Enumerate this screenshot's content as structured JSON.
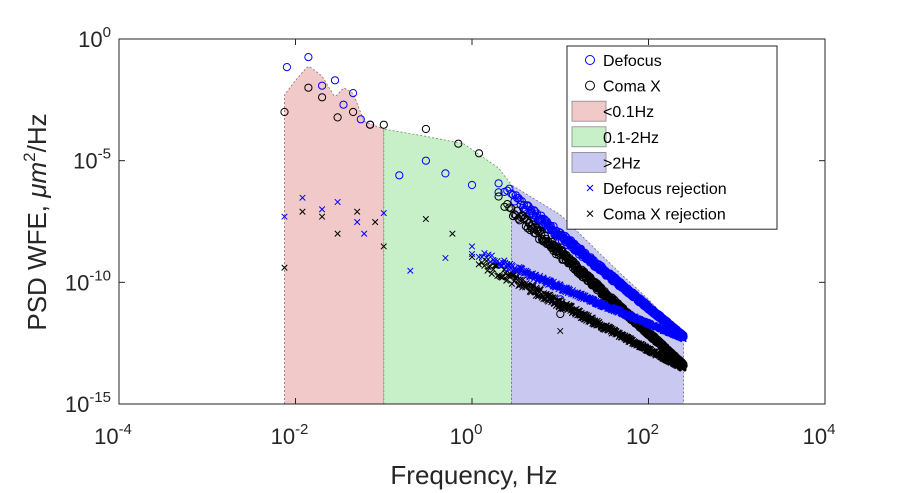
{
  "chart_data": {
    "type": "scatter",
    "xscale": "log",
    "yscale": "log",
    "xlabel": "Frequency, Hz",
    "ylabel_prefix": "PSD WFE,  ",
    "ylabel_unit": "μm",
    "ylabel_exp": "2",
    "ylabel_suffix": "/Hz",
    "xlim": [
      0.0001,
      10000
    ],
    "ylim": [
      1e-15,
      1
    ],
    "x_ticks": [
      {
        "base": "10",
        "exp": "-4",
        "value": -4
      },
      {
        "base": "10",
        "exp": "-2",
        "value": -2
      },
      {
        "base": "10",
        "exp": "0",
        "value": 0
      },
      {
        "base": "10",
        "exp": "2",
        "value": 2
      },
      {
        "base": "10",
        "exp": "4",
        "value": 4
      }
    ],
    "y_ticks": [
      {
        "base": "10",
        "exp": "0",
        "value": 0
      },
      {
        "base": "10",
        "exp": "-5",
        "value": -5
      },
      {
        "base": "10",
        "exp": "-10",
        "value": -10
      },
      {
        "base": "10",
        "exp": "-15",
        "value": -15
      }
    ],
    "bands": [
      {
        "name": "<0.1Hz",
        "x_from": 0.0075,
        "x_to": 0.1,
        "color": "#f2c9c9",
        "edge": "#8a7070"
      },
      {
        "name": "0.1-2Hz",
        "x_from": 0.1,
        "x_to": 2.8,
        "color": "#c8f0c8",
        "edge": "#708a70"
      },
      {
        "name": ">2Hz",
        "x_from": 2.8,
        "x_to": 250,
        "color": "#c8c8f0",
        "edge": "#70708a"
      }
    ],
    "envelope": [
      {
        "x": 0.0075,
        "y": 0.005
      },
      {
        "x": 0.01,
        "y": 0.02
      },
      {
        "x": 0.014,
        "y": 0.08
      },
      {
        "x": 0.02,
        "y": 0.03
      },
      {
        "x": 0.028,
        "y": 0.004
      },
      {
        "x": 0.035,
        "y": 0.01
      },
      {
        "x": 0.045,
        "y": 0.006
      },
      {
        "x": 0.06,
        "y": 0.0004
      },
      {
        "x": 0.1,
        "y": 0.0002
      },
      {
        "x": 0.3,
        "y": 0.0001
      },
      {
        "x": 0.8,
        "y": 5e-05
      },
      {
        "x": 2,
        "y": 5e-06
      },
      {
        "x": 2.8,
        "y": 1e-06
      },
      {
        "x": 10,
        "y": 6e-08
      },
      {
        "x": 50,
        "y": 2e-10
      },
      {
        "x": 100,
        "y": 2e-11
      },
      {
        "x": 250,
        "y": 5e-13
      }
    ],
    "series": [
      {
        "name": "Defocus",
        "marker": "circle",
        "color": "#0000ff",
        "points": [
          [
            0.008,
            0.07
          ],
          [
            0.014,
            0.18
          ],
          [
            0.02,
            0.012
          ],
          [
            0.028,
            0.02
          ],
          [
            0.035,
            0.002
          ],
          [
            0.045,
            0.006
          ],
          [
            0.055,
            0.0005
          ],
          [
            0.07,
            0.0003
          ],
          [
            0.15,
            2.5e-06
          ],
          [
            0.3,
            1e-05
          ],
          [
            0.5,
            3e-06
          ],
          [
            1.0,
            1e-06
          ],
          [
            2.0,
            5e-07
          ],
          [
            10,
            2e-11
          ]
        ],
        "trend": {
          "x_from": 2,
          "x_to": 250,
          "y_from": 1e-06,
          "y_to": 6e-13,
          "spread_dec": 0.45
        }
      },
      {
        "name": "Coma X",
        "marker": "circle",
        "color": "#000000",
        "points": [
          [
            0.0075,
            0.001
          ],
          [
            0.014,
            0.01
          ],
          [
            0.02,
            0.004
          ],
          [
            0.03,
            0.0006
          ],
          [
            0.045,
            0.001
          ],
          [
            0.07,
            0.0003
          ],
          [
            0.1,
            0.0003
          ],
          [
            0.3,
            0.0002
          ],
          [
            0.7,
            5e-05
          ],
          [
            1.2,
            2e-05
          ],
          [
            10,
            5e-12
          ]
        ],
        "trend": {
          "x_from": 2,
          "x_to": 250,
          "y_from": 3e-07,
          "y_to": 4e-14,
          "spread_dec": 0.5
        }
      },
      {
        "name": "Defocus rejection",
        "marker": "x",
        "color": "#0000ff",
        "points": [
          [
            0.0075,
            5e-08
          ],
          [
            0.012,
            3e-07
          ],
          [
            0.02,
            1e-07
          ],
          [
            0.03,
            2e-07
          ],
          [
            0.05,
            3e-08
          ],
          [
            0.06,
            1e-08
          ],
          [
            0.1,
            7e-08
          ],
          [
            0.2,
            3e-10
          ],
          [
            0.5,
            1e-09
          ],
          [
            1.0,
            3e-09
          ]
        ],
        "trend": {
          "x_from": 1,
          "x_to": 250,
          "y_from": 2e-09,
          "y_to": 5e-13,
          "spread_dec": 0.35
        }
      },
      {
        "name": "Coma X rejection",
        "marker": "x",
        "color": "#000000",
        "points": [
          [
            0.0075,
            4e-10
          ],
          [
            0.012,
            8e-08
          ],
          [
            0.02,
            5e-08
          ],
          [
            0.03,
            1e-08
          ],
          [
            0.05,
            8e-08
          ],
          [
            0.08,
            3e-08
          ],
          [
            0.1,
            3e-09
          ],
          [
            0.3,
            4e-08
          ],
          [
            0.6,
            1e-08
          ],
          [
            1.5,
            3e-10
          ],
          [
            10,
            1e-12
          ]
        ],
        "trend": {
          "x_from": 1,
          "x_to": 250,
          "y_from": 1e-09,
          "y_to": 3e-14,
          "spread_dec": 0.5
        }
      }
    ],
    "legend": {
      "placement": "top-right",
      "entries": [
        {
          "label": "Defocus",
          "kind": "circle",
          "color": "#0000ff"
        },
        {
          "label": "Coma X",
          "kind": "circle",
          "color": "#000000"
        },
        {
          "label": "<0.1Hz",
          "kind": "patch",
          "color": "#f2c9c9"
        },
        {
          "label": "0.1-2Hz",
          "kind": "patch",
          "color": "#c8f0c8"
        },
        {
          "label": ">2Hz",
          "kind": "patch",
          "color": "#c8c8f0"
        },
        {
          "label": "Defocus rejection",
          "kind": "x",
          "color": "#0000ff"
        },
        {
          "label": "Coma X rejection",
          "kind": "x",
          "color": "#000000"
        }
      ]
    }
  }
}
